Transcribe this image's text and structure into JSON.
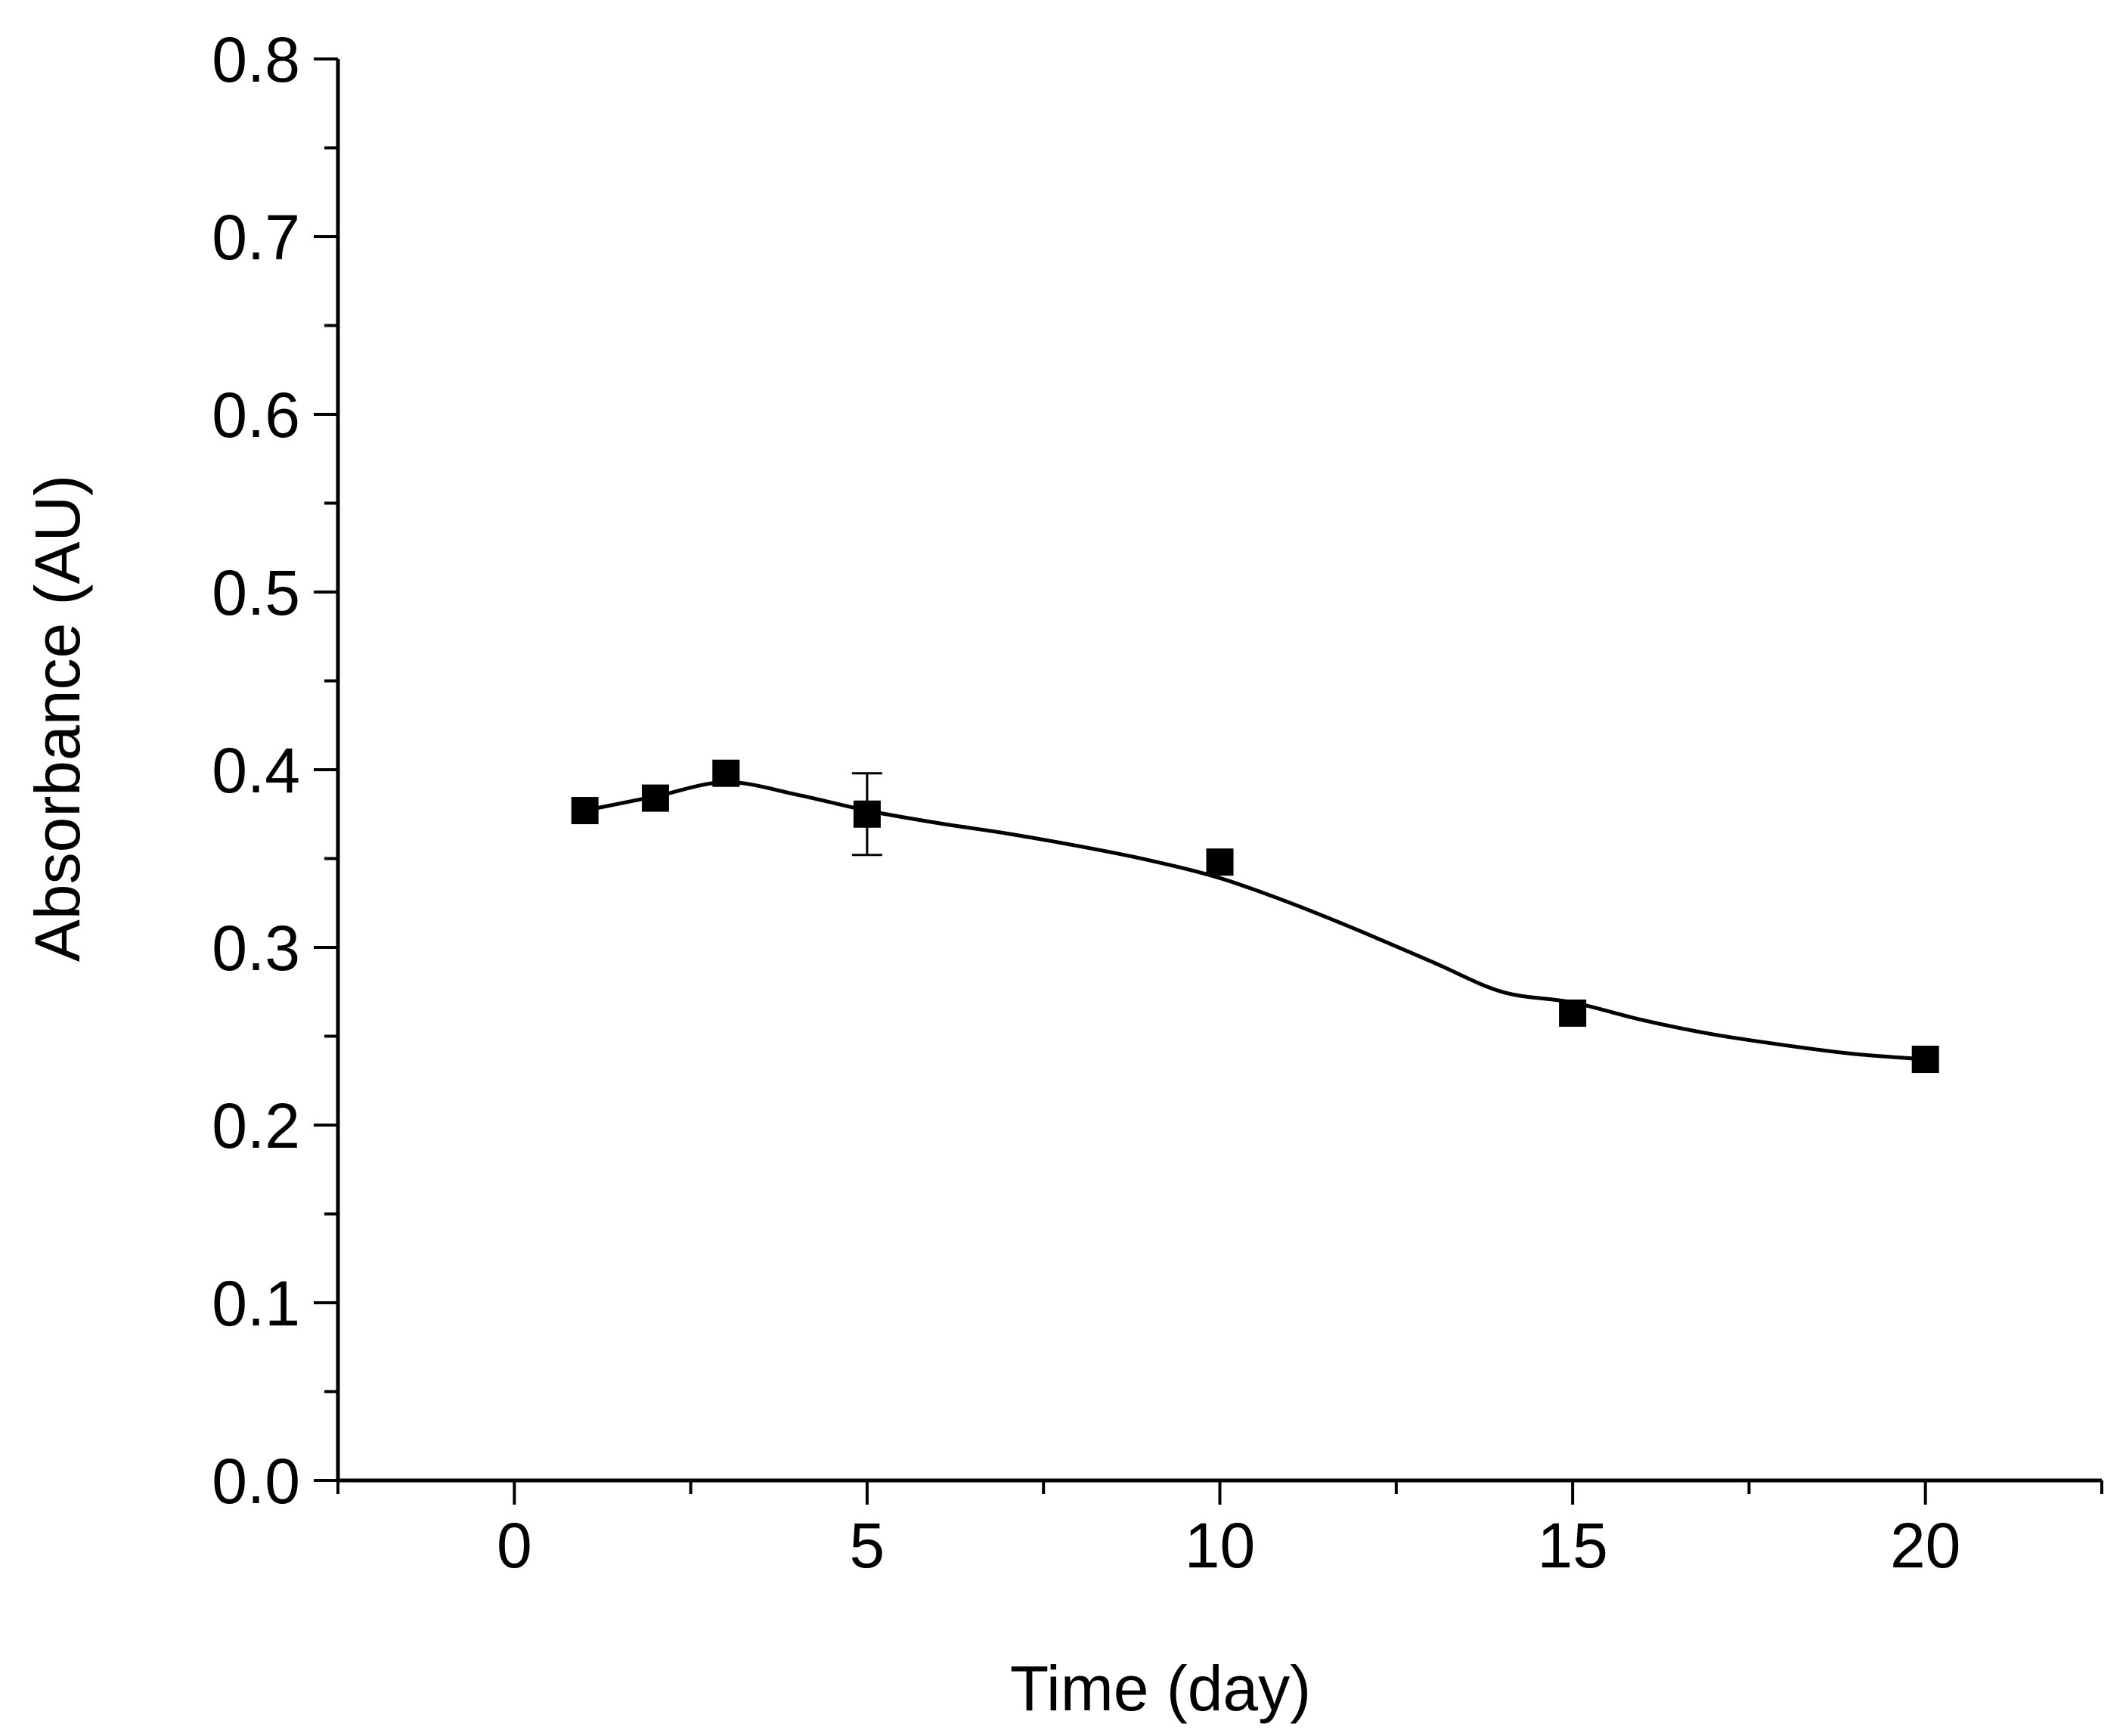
{
  "chart_data": {
    "type": "scatter",
    "title": "",
    "xlabel": "Time (day)",
    "ylabel": "Absorbance (AU)",
    "xlim": [
      -2.5,
      22.5
    ],
    "ylim": [
      0.0,
      0.8
    ],
    "x_ticks": [
      0,
      5,
      10,
      15,
      20
    ],
    "x_tick_labels": [
      "0",
      "5",
      "10",
      "15",
      "20"
    ],
    "y_ticks": [
      0.0,
      0.1,
      0.2,
      0.3,
      0.4,
      0.5,
      0.6,
      0.7,
      0.8
    ],
    "y_tick_labels": [
      "0.0",
      "0.1",
      "0.2",
      "0.3",
      "0.4",
      "0.5",
      "0.6",
      "0.7",
      "0.8"
    ],
    "grid": false,
    "legend": "none",
    "series": [
      {
        "name": "Absorbance",
        "marker": "square",
        "color": "#000000",
        "x": [
          1,
          2,
          3,
          5,
          10,
          15,
          20
        ],
        "y": [
          0.377,
          0.384,
          0.398,
          0.375,
          0.348,
          0.263,
          0.237
        ],
        "error": [
          0,
          0,
          0,
          0.023,
          0,
          0,
          0
        ]
      }
    ],
    "fit_curve": {
      "color": "#000000",
      "x": [
        1,
        2,
        3,
        4,
        5,
        6,
        7,
        8,
        9,
        10,
        11,
        12,
        13,
        14,
        15,
        16,
        17,
        18,
        19,
        20
      ],
      "y": [
        0.377,
        0.385,
        0.393,
        0.386,
        0.377,
        0.37,
        0.364,
        0.357,
        0.349,
        0.339,
        0.325,
        0.309,
        0.292,
        0.275,
        0.269,
        0.259,
        0.251,
        0.245,
        0.24,
        0.237
      ]
    }
  }
}
